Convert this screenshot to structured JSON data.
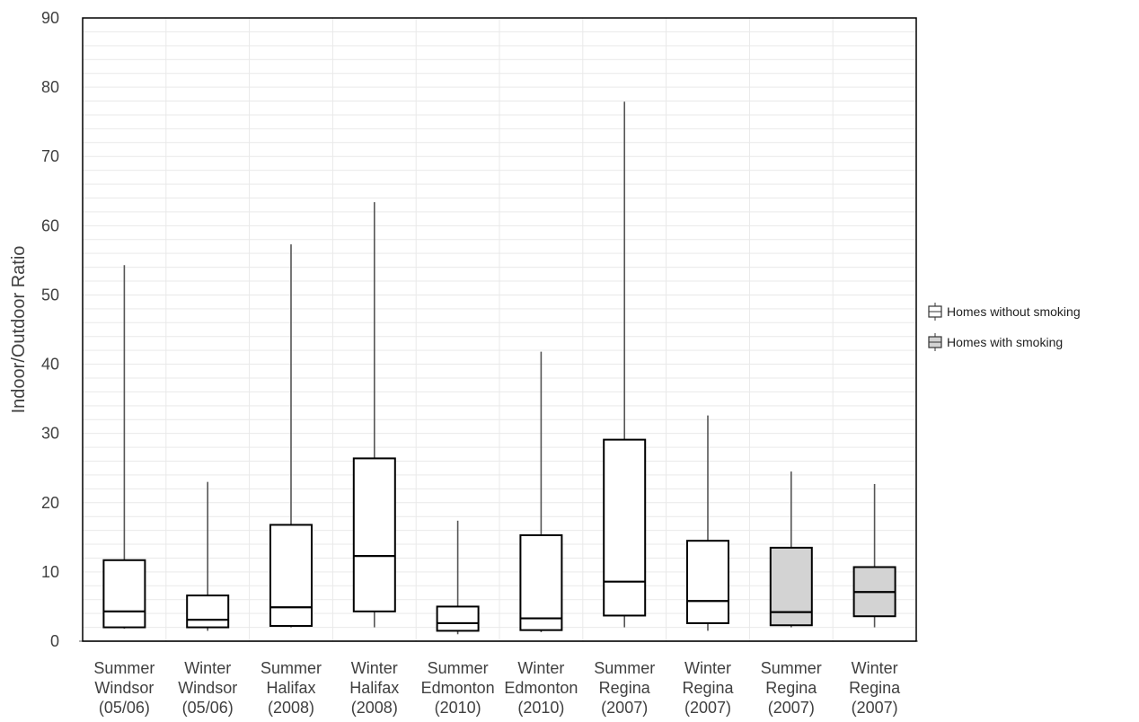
{
  "chart_data": {
    "type": "box",
    "ylabel": "Indoor/Outdoor Ratio",
    "xlabel": "",
    "ylim": [
      0,
      90
    ],
    "yticks": [
      0,
      10,
      20,
      30,
      40,
      50,
      60,
      70,
      80,
      90
    ],
    "grid": true,
    "legend_position": "right",
    "legend": [
      {
        "label": "Homes without smoking",
        "color": "#ffffff"
      },
      {
        "label": "Homes with smoking",
        "color": "#d3d3d3"
      }
    ],
    "categories": [
      [
        "Summer",
        "Windsor",
        "(05/06)"
      ],
      [
        "Winter",
        "Windsor",
        "(05/06)"
      ],
      [
        "Summer",
        "Halifax",
        "(2008)"
      ],
      [
        "Winter",
        "Halifax",
        "(2008)"
      ],
      [
        "Summer",
        "Edmonton",
        "(2010)"
      ],
      [
        "Winter",
        "Edmonton",
        "(2010)"
      ],
      [
        "Summer",
        "Regina",
        "(2007)"
      ],
      [
        "Winter",
        "Regina",
        "(2007)"
      ],
      [
        "Summer",
        "Regina",
        "(2007)"
      ],
      [
        "Winter",
        "Regina",
        "(2007)"
      ]
    ],
    "boxes": [
      {
        "min": 1.8,
        "q1": 2.0,
        "median": 4.3,
        "q3": 11.7,
        "max": 54.3,
        "group": "Homes without smoking"
      },
      {
        "min": 1.5,
        "q1": 2.0,
        "median": 3.1,
        "q3": 6.6,
        "max": 23.0,
        "group": "Homes without smoking"
      },
      {
        "min": 2.0,
        "q1": 2.2,
        "median": 4.9,
        "q3": 16.8,
        "max": 57.3,
        "group": "Homes without smoking"
      },
      {
        "min": 2.0,
        "q1": 4.3,
        "median": 12.3,
        "q3": 26.4,
        "max": 63.4,
        "group": "Homes without smoking"
      },
      {
        "min": 1.0,
        "q1": 1.5,
        "median": 2.6,
        "q3": 5.0,
        "max": 17.4,
        "group": "Homes without smoking"
      },
      {
        "min": 1.3,
        "q1": 1.6,
        "median": 3.3,
        "q3": 15.3,
        "max": 41.8,
        "group": "Homes without smoking"
      },
      {
        "min": 2.0,
        "q1": 3.7,
        "median": 8.6,
        "q3": 29.1,
        "max": 77.9,
        "group": "Homes without smoking"
      },
      {
        "min": 1.5,
        "q1": 2.6,
        "median": 5.8,
        "q3": 14.5,
        "max": 32.6,
        "group": "Homes without smoking"
      },
      {
        "min": 2.0,
        "q1": 2.3,
        "median": 4.2,
        "q3": 13.5,
        "max": 24.5,
        "group": "Homes with smoking"
      },
      {
        "min": 2.0,
        "q1": 3.6,
        "median": 7.1,
        "q3": 10.7,
        "max": 22.7,
        "group": "Homes with smoking"
      }
    ]
  }
}
